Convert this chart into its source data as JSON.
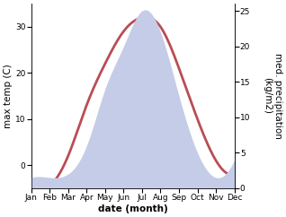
{
  "months": [
    "Jan",
    "Feb",
    "Mar",
    "Apr",
    "May",
    "Jun",
    "Jul",
    "Aug",
    "Sep",
    "Oct",
    "Nov",
    "Dec"
  ],
  "temp": [
    -4,
    -4.5,
    2,
    13,
    22,
    29,
    32,
    30,
    21,
    10,
    1,
    -2
  ],
  "precip": [
    1.5,
    1.5,
    2,
    6,
    14,
    20,
    25,
    22,
    13,
    5,
    1.5,
    4
  ],
  "temp_color": "#b94d55",
  "precip_fill_color": "#c5cce8",
  "ylabel_left": "max temp (C)",
  "ylabel_right": "med. precipitation\n(kg/m2)",
  "xlabel": "date (month)",
  "ylim_left": [
    -5,
    35
  ],
  "ylim_right": [
    0,
    26
  ],
  "yticks_left": [
    0,
    10,
    20,
    30
  ],
  "yticks_right": [
    0,
    5,
    10,
    15,
    20,
    25
  ],
  "bg_color": "#ffffff",
  "line_width": 2.0,
  "label_fontsize": 7.5,
  "tick_fontsize": 6.5
}
